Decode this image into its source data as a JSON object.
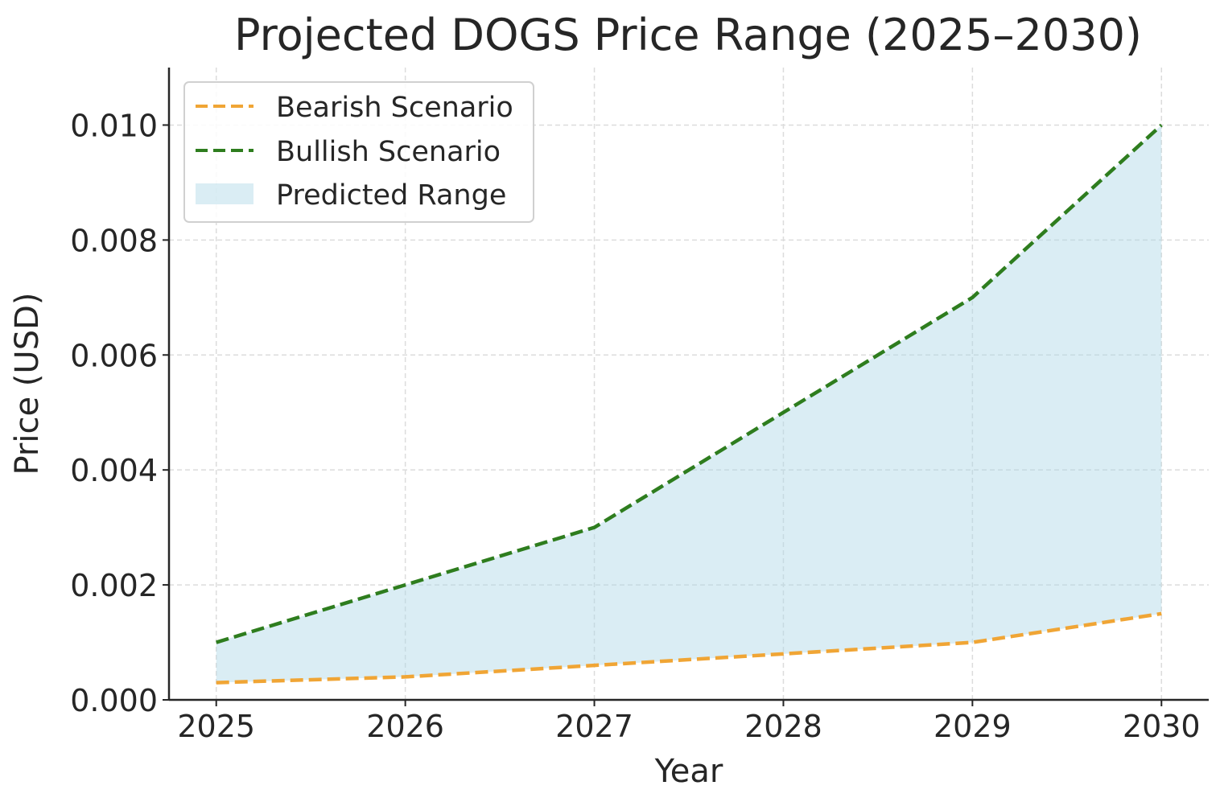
{
  "chart_data": {
    "type": "area",
    "title": "Projected DOGS Price Range (2025–2030)",
    "xlabel": "Year",
    "ylabel": "Price (USD)",
    "x": [
      2025,
      2026,
      2027,
      2028,
      2029,
      2030
    ],
    "xticks": [
      "2025",
      "2026",
      "2027",
      "2028",
      "2029",
      "2030"
    ],
    "yticks": [
      "0.000",
      "0.002",
      "0.004",
      "0.006",
      "0.008",
      "0.010"
    ],
    "ytick_values": [
      0,
      0.002,
      0.004,
      0.006,
      0.008,
      0.01
    ],
    "xlim": [
      2024.75,
      2030.25
    ],
    "ylim": [
      0,
      0.011
    ],
    "grid": true,
    "legend_position": "top-left",
    "series": [
      {
        "name": "Bearish Scenario",
        "style": "dashed",
        "color": "#f0a535",
        "values": [
          0.0003,
          0.0004,
          0.0006,
          0.0008,
          0.001,
          0.0015
        ]
      },
      {
        "name": "Bullish Scenario",
        "style": "dashed",
        "color": "#2e7d1e",
        "values": [
          0.001,
          0.002,
          0.003,
          0.005,
          0.007,
          0.01
        ]
      }
    ],
    "fill": {
      "name": "Predicted Range",
      "color": "#add8e6",
      "between": [
        "Bearish Scenario",
        "Bullish Scenario"
      ]
    }
  }
}
